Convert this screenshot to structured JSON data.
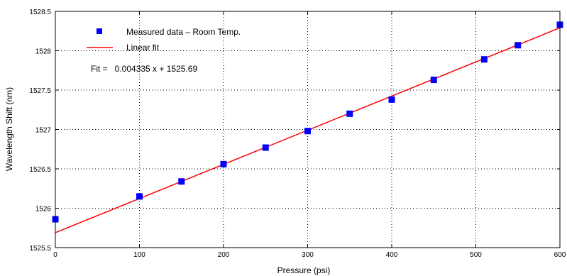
{
  "chart_data": {
    "type": "scatter",
    "xlabel": "Pressure (psi)",
    "ylabel": "Wavelength Shift (nm)",
    "xlim": [
      0,
      600
    ],
    "ylim": [
      1525.5,
      1528.5
    ],
    "grid": true,
    "x_ticks": [
      "0",
      "100",
      "200",
      "300",
      "400",
      "500",
      "600"
    ],
    "y_ticks": [
      "1525.5",
      "1526",
      "1526.5",
      "1527",
      "1527.5",
      "1528",
      "1528.5"
    ],
    "legend_position": "top-left",
    "series": [
      {
        "name": "Measured data – Room Temp.",
        "kind": "markers",
        "color": "#0000ff",
        "x": [
          0,
          100,
          150,
          200,
          250,
          300,
          350,
          400,
          450,
          510,
          550,
          600
        ],
        "y": [
          1525.86,
          1526.15,
          1526.34,
          1526.56,
          1526.77,
          1526.98,
          1527.2,
          1527.38,
          1527.63,
          1527.89,
          1528.07,
          1528.33
        ]
      },
      {
        "name": "Linear fit",
        "kind": "line",
        "color": "#ff0000",
        "slope": 0.004335,
        "intercept": 1525.69
      }
    ],
    "annotation": "Fit =   0.004335 x + 1525.69"
  }
}
